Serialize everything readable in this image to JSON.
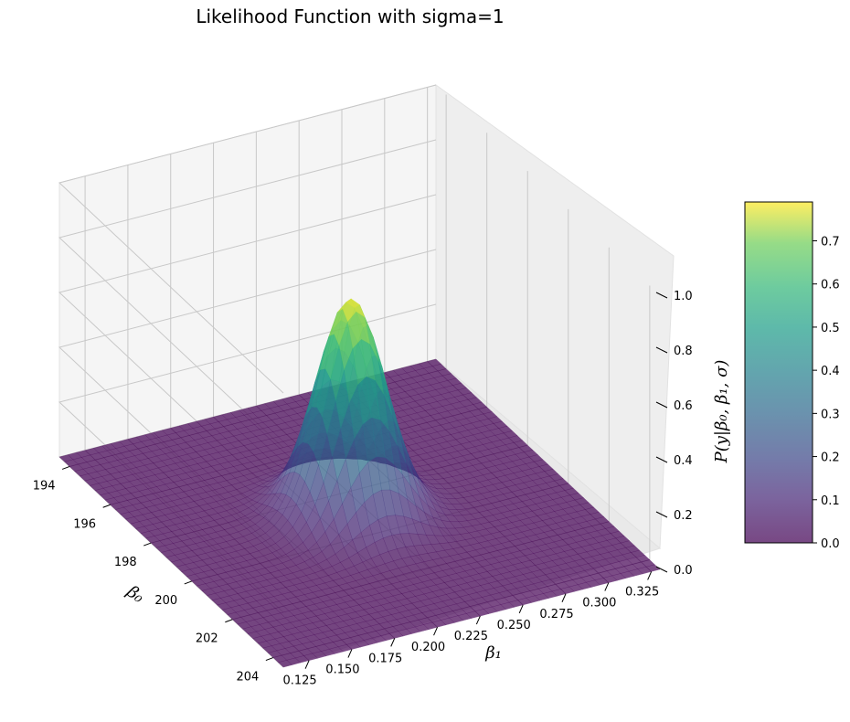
{
  "chart_data": {
    "type": "surface3d",
    "title": "Likelihood Function with sigma=1",
    "xlabel": "β₁",
    "ylabel": "β₀",
    "zlabel": "P(y|β₀, β₁, σ)",
    "x_ticks": [
      "0.125",
      "0.150",
      "0.175",
      "0.200",
      "0.225",
      "0.250",
      "0.275",
      "0.300",
      "0.325"
    ],
    "y_ticks": [
      "194",
      "196",
      "198",
      "200",
      "202",
      "204"
    ],
    "z_ticks": [
      "0.0",
      "0.2",
      "0.4",
      "0.6",
      "0.8",
      "1.0"
    ],
    "colorbar_ticks": [
      "0.0",
      "0.1",
      "0.2",
      "0.3",
      "0.4",
      "0.5",
      "0.6",
      "0.7"
    ],
    "xlim": [
      0.11,
      0.33
    ],
    "ylim": [
      193.5,
      204.5
    ],
    "zlim": [
      0,
      1.0
    ],
    "colorbar_range": [
      0,
      0.79
    ],
    "colormap": "viridis",
    "surface_alpha": 0.7,
    "peak": {
      "beta1": 0.215,
      "beta0": 199.0,
      "value": 0.79
    },
    "grid": true
  }
}
